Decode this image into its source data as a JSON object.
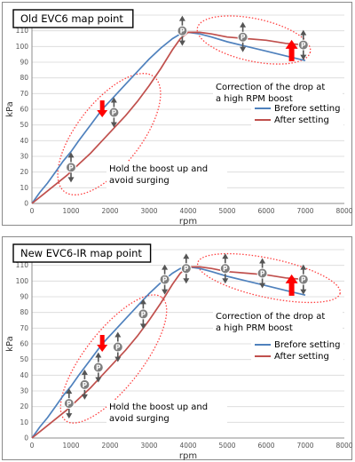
{
  "chart_data": [
    {
      "type": "line",
      "title": "Old EVC6 map point",
      "xlabel": "rpm",
      "ylabel": "kPa",
      "xlim": [
        0,
        8000
      ],
      "ylim": [
        0,
        120
      ],
      "xticks": [
        0,
        1000,
        2000,
        3000,
        4000,
        5000,
        6000,
        7000,
        8000
      ],
      "yticks": [
        0,
        10,
        20,
        30,
        40,
        50,
        60,
        70,
        80,
        90,
        100,
        110,
        120
      ],
      "grid": "horizontal",
      "legend_position": "right-middle",
      "series": [
        {
          "name": "Brefore setting",
          "color": "#4f81bd",
          "x": [
            0,
            200,
            400,
            600,
            800,
            1000,
            1200,
            1500,
            1800,
            2100,
            2400,
            2700,
            3000,
            3300,
            3600,
            3800,
            4000,
            4300,
            4600,
            5000,
            5500,
            6000,
            6500,
            7000
          ],
          "y": [
            0,
            7,
            13,
            20,
            27,
            33,
            40,
            50,
            60,
            68,
            76,
            84,
            92,
            99,
            105,
            108,
            109,
            108,
            106,
            103,
            100,
            97,
            94,
            91
          ]
        },
        {
          "name": "After setting",
          "color": "#c0504d",
          "x": [
            0,
            300,
            600,
            900,
            1200,
            1500,
            1800,
            2100,
            2400,
            2700,
            3000,
            3300,
            3600,
            3800,
            4000,
            4300,
            4600,
            5000,
            5500,
            6000,
            6500,
            7000
          ],
          "y": [
            0,
            6,
            12,
            18,
            25,
            32,
            40,
            48,
            56,
            65,
            75,
            86,
            98,
            105,
            109,
            109,
            108,
            106,
            105,
            104,
            102,
            101
          ]
        }
      ],
      "map_points": [
        {
          "x": 1000,
          "y": 23
        },
        {
          "x": 2100,
          "y": 58
        },
        {
          "x": 3850,
          "y": 110
        },
        {
          "x": 5400,
          "y": 106
        },
        {
          "x": 6950,
          "y": 101
        }
      ],
      "adjust_arrows": [
        {
          "x": 1800,
          "y": 60,
          "direction": "down"
        },
        {
          "x": 6650,
          "y": 98,
          "direction": "up"
        }
      ],
      "annotations": [
        {
          "text": "Correction of the drop at a high RPM boost"
        },
        {
          "text": "Hold the boost up and avoid surging"
        }
      ],
      "marker_label": "P"
    },
    {
      "type": "line",
      "title": "New EVC6-IR map point",
      "xlabel": "rpm",
      "ylabel": "kPa",
      "xlim": [
        0,
        8000
      ],
      "ylim": [
        0,
        120
      ],
      "xticks": [
        0,
        1000,
        2000,
        3000,
        4000,
        5000,
        6000,
        7000,
        8000
      ],
      "yticks": [
        0,
        10,
        20,
        30,
        40,
        50,
        60,
        70,
        80,
        90,
        100,
        110,
        120
      ],
      "grid": "horizontal",
      "legend_position": "right-middle",
      "series": [
        {
          "name": "Brefore setting",
          "color": "#4f81bd",
          "x": [
            0,
            200,
            400,
            600,
            800,
            1000,
            1200,
            1500,
            1800,
            2100,
            2400,
            2700,
            3000,
            3300,
            3600,
            3800,
            4000,
            4300,
            4600,
            5000,
            5500,
            6000,
            6500,
            7000
          ],
          "y": [
            0,
            7,
            13,
            20,
            27,
            33,
            40,
            50,
            60,
            68,
            76,
            84,
            92,
            99,
            105,
            108,
            109,
            108,
            106,
            103,
            100,
            97,
            94,
            91
          ]
        },
        {
          "name": "After setting",
          "color": "#c0504d",
          "x": [
            0,
            300,
            600,
            900,
            1200,
            1500,
            1800,
            2100,
            2400,
            2700,
            3000,
            3300,
            3600,
            3800,
            4000,
            4300,
            4600,
            5000,
            5500,
            6000,
            6500,
            7000
          ],
          "y": [
            0,
            6,
            12,
            18,
            25,
            32,
            40,
            48,
            56,
            65,
            75,
            86,
            98,
            105,
            109,
            109,
            108,
            106,
            105,
            104,
            102,
            101
          ]
        }
      ],
      "map_points": [
        {
          "x": 950,
          "y": 22
        },
        {
          "x": 1350,
          "y": 34
        },
        {
          "x": 1700,
          "y": 45
        },
        {
          "x": 2200,
          "y": 58
        },
        {
          "x": 2850,
          "y": 79
        },
        {
          "x": 3400,
          "y": 101
        },
        {
          "x": 3950,
          "y": 108
        },
        {
          "x": 4950,
          "y": 108
        },
        {
          "x": 5900,
          "y": 105
        },
        {
          "x": 6950,
          "y": 101
        }
      ],
      "adjust_arrows": [
        {
          "x": 1800,
          "y": 60,
          "direction": "down"
        },
        {
          "x": 6650,
          "y": 98,
          "direction": "up"
        }
      ],
      "annotations": [
        {
          "text": "Correction of the drop at a high PRM boost"
        },
        {
          "text": "Hold the boost up and avoid surging"
        }
      ],
      "marker_label": "P"
    }
  ]
}
